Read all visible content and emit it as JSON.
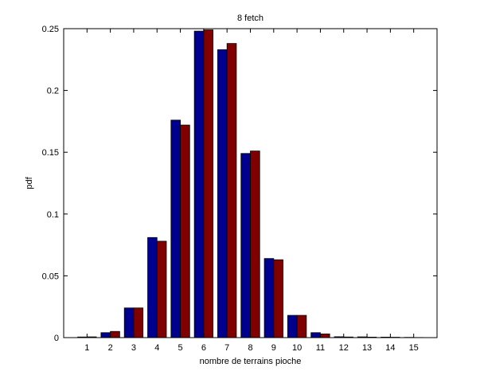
{
  "chart_data": {
    "type": "bar",
    "title": "8 fetch",
    "xlabel": "nombre de terrains pioche",
    "ylabel": "pdf",
    "categories": [
      "1",
      "2",
      "3",
      "4",
      "5",
      "6",
      "7",
      "8",
      "9",
      "10",
      "11",
      "12",
      "13",
      "14",
      "15"
    ],
    "series": [
      {
        "color": "#00008f",
        "values": [
          0.0005,
          0.004,
          0.024,
          0.081,
          0.176,
          0.248,
          0.233,
          0.149,
          0.064,
          0.018,
          0.004,
          0.0007,
          0.0006,
          0.0004,
          0.0002
        ]
      },
      {
        "color": "#800000",
        "values": [
          0.0006,
          0.005,
          0.024,
          0.078,
          0.172,
          0.249,
          0.238,
          0.151,
          0.063,
          0.018,
          0.003,
          0.0005,
          0.0004,
          0.0003,
          0.0001
        ]
      }
    ],
    "ylim": [
      0,
      0.25
    ],
    "yticks": [
      0,
      0.05,
      0.1,
      0.15,
      0.2,
      0.25
    ],
    "ytick_labels": [
      "0",
      "0.05",
      "0.1",
      "0.15",
      "0.2",
      "0.25"
    ],
    "xlim": [
      0,
      16
    ],
    "grid": false,
    "legend": "none"
  }
}
